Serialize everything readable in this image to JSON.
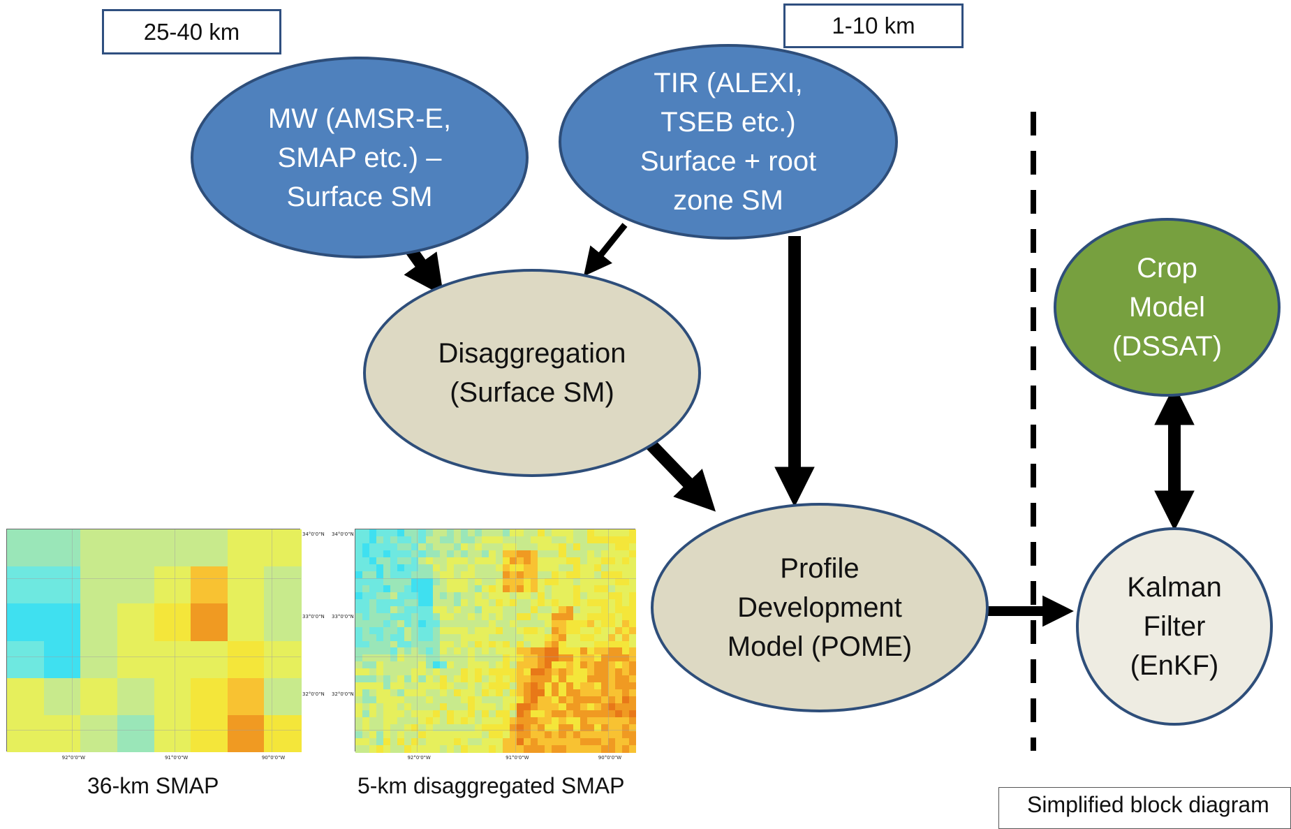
{
  "scale_labels": {
    "coarse": "25-40 km",
    "fine": "1-10 km"
  },
  "nodes": {
    "mw": "MW  (AMSR-E,\nSMAP etc.) –\nSurface SM",
    "tir": "TIR (ALEXI,\nTSEB etc.)\nSurface + root\nzone SM",
    "disagg": "Disaggregation\n(Surface SM)",
    "pome": "Profile\nDevelopment\nModel (POME)",
    "crop": "Crop\nModel\n(DSSAT)",
    "kalman": "Kalman\nFilter\n(EnKF)"
  },
  "maps": {
    "coarse": {
      "caption": "36-km SMAP",
      "lat_ticks": [
        "34°0'0\"N",
        "33°0'0\"N",
        "32°0'0\"N"
      ],
      "lon_ticks": [
        "92°0'0\"W",
        "91°0'0\"W",
        "90°0'0\"W"
      ]
    },
    "fine": {
      "caption": "5-km disaggregated SMAP",
      "lat_ticks": [
        "34°0'0\"N",
        "33°0'0\"N",
        "32°0'0\"N"
      ],
      "lon_ticks": [
        "92°0'0\"W",
        "91°0'0\"W",
        "90°0'0\"W"
      ]
    }
  },
  "legend_fragment": "Simplified block diagram",
  "colors": {
    "node_blue": "#4f81bd",
    "node_tan": "#ddd9c3",
    "node_green": "#77a03f",
    "node_light": "#eeece2",
    "node_border": "#2e4e7a",
    "arrow": "#000000"
  }
}
